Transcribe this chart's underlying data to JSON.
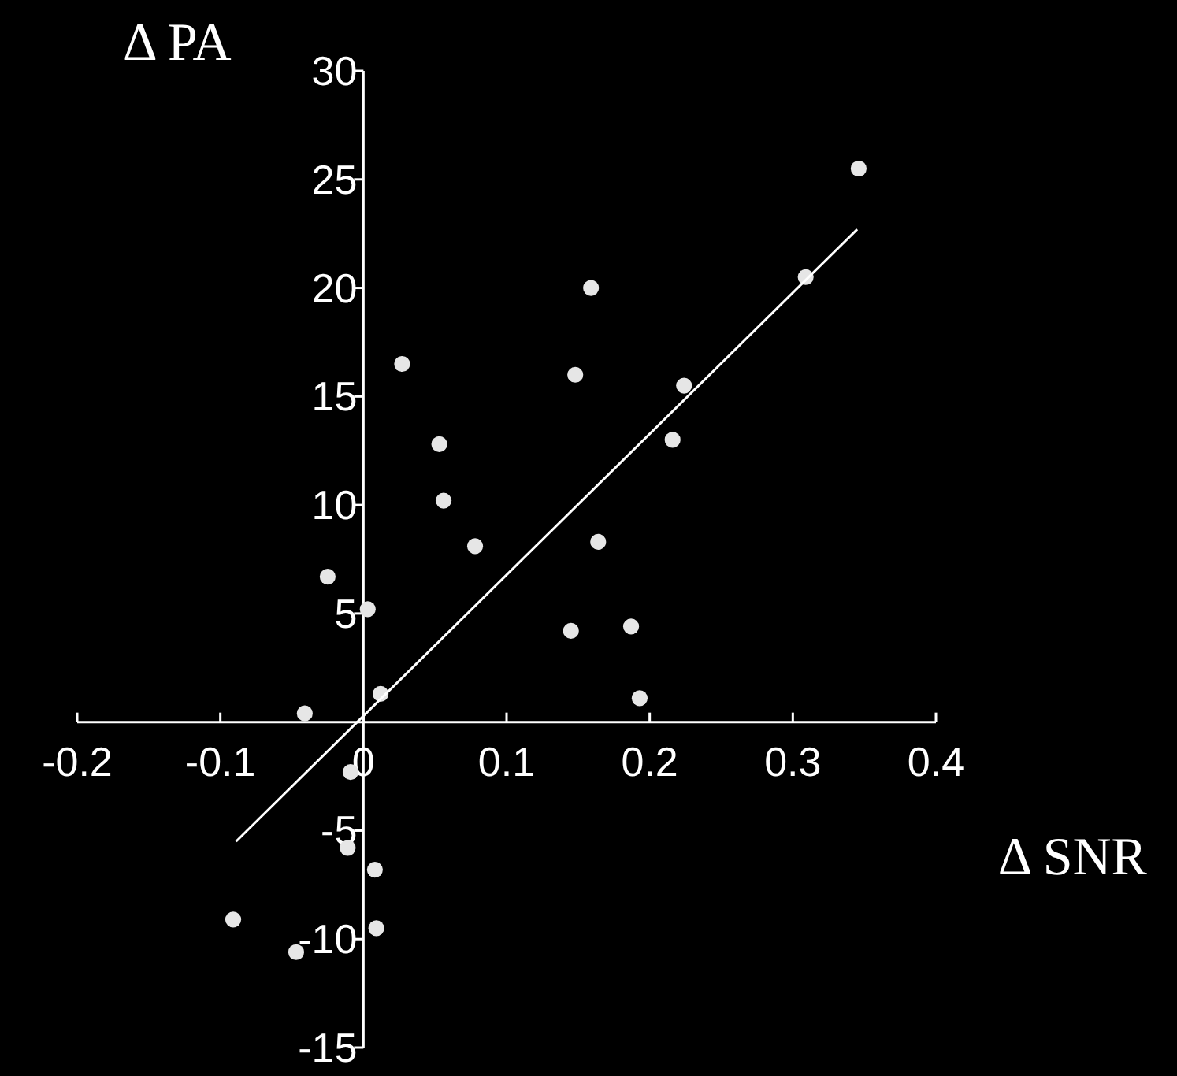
{
  "chart_data": {
    "type": "scatter",
    "xlabel": "Δ SNR",
    "ylabel": "Δ PA",
    "xlim": [
      -0.2,
      0.4
    ],
    "ylim": [
      -15,
      30
    ],
    "xticks": [
      -0.2,
      -0.1,
      0,
      0.1,
      0.2,
      0.3,
      0.4
    ],
    "yticks": [
      -15,
      -10,
      -5,
      5,
      10,
      15,
      20,
      25,
      30
    ],
    "grid": false,
    "series": [
      {
        "marker": "circle",
        "color": "#e6e6e6",
        "x": [
          0.346,
          0.309,
          0.159,
          0.027,
          0.148,
          0.224,
          0.053,
          0.216,
          0.056,
          0.078,
          0.164,
          -0.025,
          0.003,
          0.145,
          0.187,
          0.012,
          0.193,
          -0.041,
          -0.009,
          -0.011,
          0.008,
          -0.091,
          0.009,
          -0.047
        ],
        "values": [
          25.5,
          20.5,
          20,
          16.5,
          16,
          15.5,
          12.8,
          13,
          10.2,
          8.1,
          8.3,
          6.7,
          5.2,
          4.2,
          4.4,
          1.3,
          1.1,
          0.4,
          -2.3,
          -5.8,
          -6.8,
          -9.1,
          -9.5,
          -10.6
        ]
      },
      {
        "type": "line",
        "color": "#ffffff",
        "x": [
          -0.089,
          0.345
        ],
        "values": [
          -5.5,
          22.7
        ]
      }
    ]
  }
}
